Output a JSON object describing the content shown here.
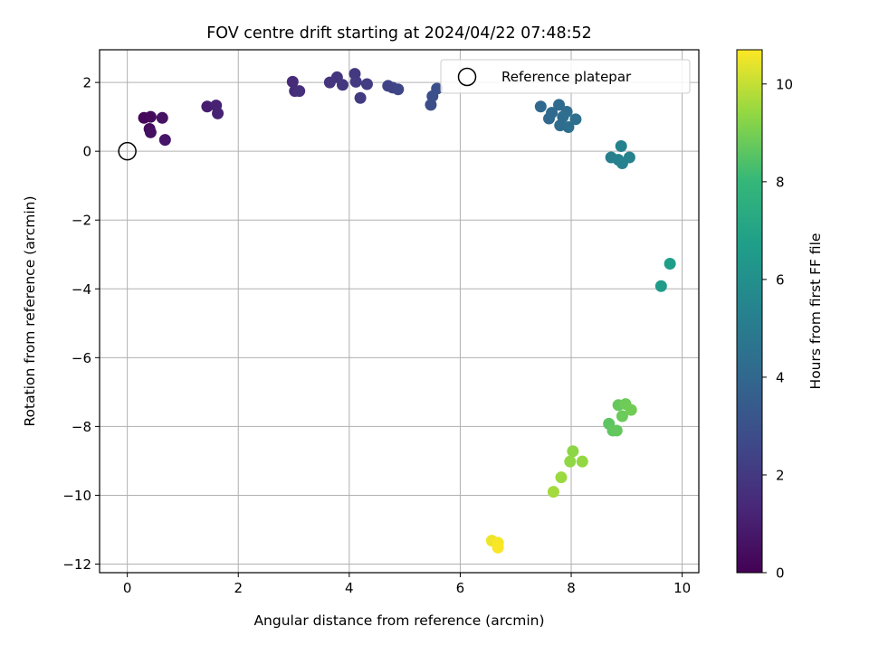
{
  "chart_data": {
    "type": "scatter",
    "title": "FOV centre drift starting at 2024/04/22 07:48:52",
    "xlabel": "Angular distance from reference (arcmin)",
    "ylabel": "Rotation from reference (arcmin)",
    "xlim": [
      -0.5,
      10.3
    ],
    "ylim": [
      -12.25,
      2.95
    ],
    "xticks": [
      "0",
      "2",
      "4",
      "6",
      "8",
      "10"
    ],
    "yticks": [
      "2",
      "0",
      "−2",
      "−4",
      "−6",
      "−8",
      "−10",
      "−12"
    ],
    "grid": true,
    "legend": {
      "placement": "top-right",
      "entries": [
        "Reference platepar"
      ]
    },
    "reference_point": {
      "x": 0,
      "y": 0,
      "marker": "open-circle"
    },
    "colorbar": {
      "label": "Hours from first FF file",
      "colormap": "viridis",
      "range": [
        0,
        10.7
      ],
      "ticks": [
        "0",
        "2",
        "4",
        "6",
        "8",
        "10"
      ]
    },
    "series": [
      {
        "points": [
          {
            "x": 0.3,
            "y": 0.97,
            "c": 0.2
          },
          {
            "x": 0.42,
            "y": 1.0,
            "c": 0.3
          },
          {
            "x": 0.4,
            "y": 0.65,
            "c": 0.4
          },
          {
            "x": 0.42,
            "y": 0.55,
            "c": 0.5
          },
          {
            "x": 0.63,
            "y": 0.97,
            "c": 0.6
          },
          {
            "x": 0.68,
            "y": 0.33,
            "c": 0.7
          },
          {
            "x": 1.44,
            "y": 1.3,
            "c": 1.0
          },
          {
            "x": 1.6,
            "y": 1.33,
            "c": 1.1
          },
          {
            "x": 1.63,
            "y": 1.1,
            "c": 1.15
          },
          {
            "x": 2.98,
            "y": 2.02,
            "c": 1.5
          },
          {
            "x": 3.02,
            "y": 1.75,
            "c": 1.55
          },
          {
            "x": 3.1,
            "y": 1.75,
            "c": 1.6
          },
          {
            "x": 3.65,
            "y": 2.0,
            "c": 1.8
          },
          {
            "x": 3.78,
            "y": 2.15,
            "c": 1.85
          },
          {
            "x": 3.88,
            "y": 1.93,
            "c": 1.9
          },
          {
            "x": 4.1,
            "y": 2.25,
            "c": 2.0
          },
          {
            "x": 4.12,
            "y": 2.02,
            "c": 2.05
          },
          {
            "x": 4.2,
            "y": 1.55,
            "c": 2.1
          },
          {
            "x": 4.32,
            "y": 1.95,
            "c": 2.15
          },
          {
            "x": 4.7,
            "y": 1.9,
            "c": 2.4
          },
          {
            "x": 4.78,
            "y": 1.85,
            "c": 2.45
          },
          {
            "x": 4.88,
            "y": 1.8,
            "c": 2.5
          },
          {
            "x": 5.47,
            "y": 1.35,
            "c": 2.85
          },
          {
            "x": 5.5,
            "y": 1.6,
            "c": 2.9
          },
          {
            "x": 5.58,
            "y": 1.82,
            "c": 2.95
          },
          {
            "x": 7.45,
            "y": 1.3,
            "c": 4.0
          },
          {
            "x": 7.6,
            "y": 0.95,
            "c": 4.05
          },
          {
            "x": 7.65,
            "y": 1.12,
            "c": 4.1
          },
          {
            "x": 7.78,
            "y": 1.35,
            "c": 4.15
          },
          {
            "x": 7.8,
            "y": 0.75,
            "c": 4.2
          },
          {
            "x": 7.85,
            "y": 1.0,
            "c": 4.25
          },
          {
            "x": 7.92,
            "y": 1.15,
            "c": 4.3
          },
          {
            "x": 7.95,
            "y": 0.7,
            "c": 4.35
          },
          {
            "x": 8.08,
            "y": 0.93,
            "c": 4.4
          },
          {
            "x": 8.72,
            "y": -0.18,
            "c": 5.2
          },
          {
            "x": 8.85,
            "y": -0.25,
            "c": 5.25
          },
          {
            "x": 8.9,
            "y": 0.15,
            "c": 5.3
          },
          {
            "x": 8.92,
            "y": -0.35,
            "c": 5.35
          },
          {
            "x": 9.05,
            "y": -0.18,
            "c": 5.4
          },
          {
            "x": 9.62,
            "y": -3.92,
            "c": 6.6
          },
          {
            "x": 9.78,
            "y": -3.27,
            "c": 6.7
          },
          {
            "x": 8.68,
            "y": -7.92,
            "c": 8.6
          },
          {
            "x": 8.75,
            "y": -8.12,
            "c": 8.65
          },
          {
            "x": 8.82,
            "y": -8.12,
            "c": 8.7
          },
          {
            "x": 8.85,
            "y": -7.38,
            "c": 8.75
          },
          {
            "x": 8.92,
            "y": -7.7,
            "c": 8.8
          },
          {
            "x": 8.98,
            "y": -7.35,
            "c": 8.85
          },
          {
            "x": 9.08,
            "y": -7.52,
            "c": 8.9
          },
          {
            "x": 8.03,
            "y": -8.72,
            "c": 9.3
          },
          {
            "x": 7.98,
            "y": -9.02,
            "c": 9.35
          },
          {
            "x": 8.2,
            "y": -9.02,
            "c": 9.4
          },
          {
            "x": 7.82,
            "y": -9.48,
            "c": 9.5
          },
          {
            "x": 7.68,
            "y": -9.9,
            "c": 9.6
          },
          {
            "x": 6.57,
            "y": -11.32,
            "c": 10.5
          },
          {
            "x": 6.68,
            "y": -11.38,
            "c": 10.6
          },
          {
            "x": 6.68,
            "y": -11.52,
            "c": 10.65
          }
        ]
      }
    ]
  }
}
